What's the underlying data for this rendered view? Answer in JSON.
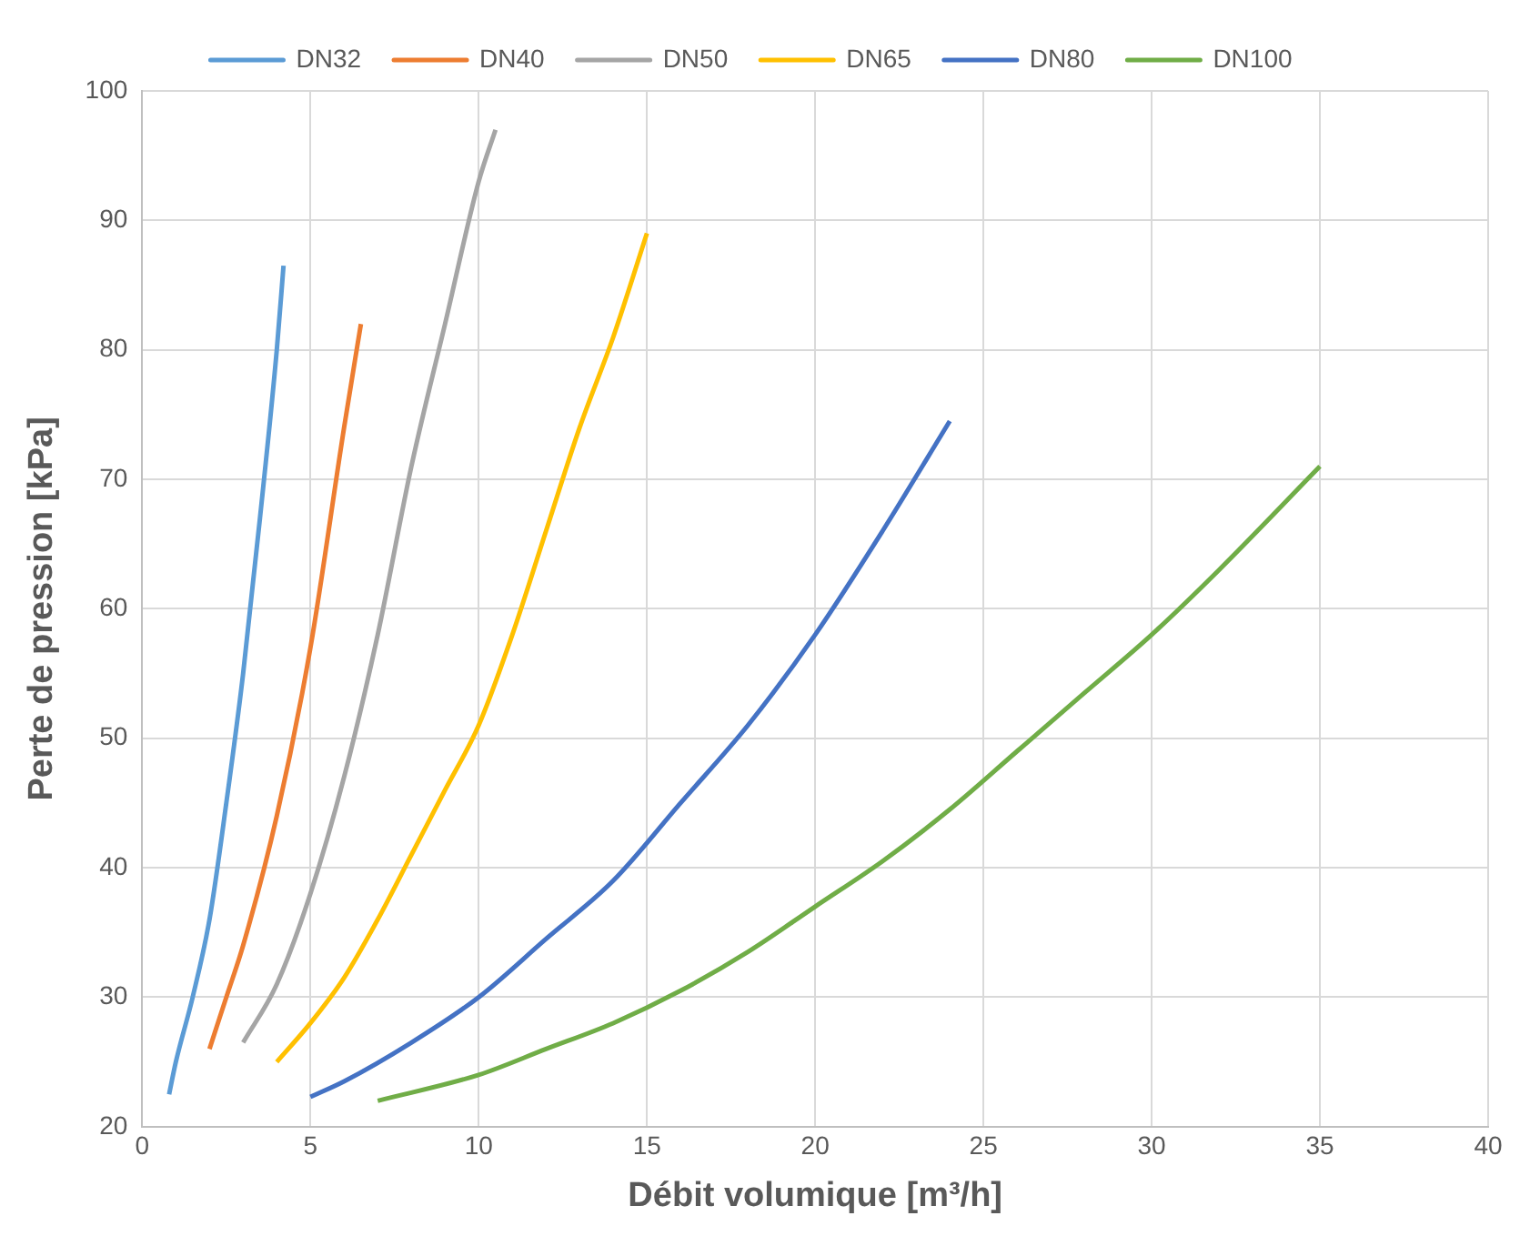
{
  "chart_data": {
    "type": "line",
    "xlabel": "Débit volumique [m³/h]",
    "ylabel": "Perte de pression [kPa]",
    "xlim": [
      0,
      40
    ],
    "xticks": [
      0,
      5,
      10,
      15,
      20,
      25,
      30,
      35,
      40
    ],
    "ylim": [
      20,
      100
    ],
    "yticks": [
      20,
      30,
      40,
      50,
      60,
      70,
      80,
      90,
      100
    ],
    "grid": true,
    "legend": "top",
    "marker": "none",
    "line_style": "solid",
    "series": [
      {
        "name": "DN32",
        "color": "#5b9bd5",
        "x": [
          0.8,
          1,
          1.5,
          2,
          2.5,
          3,
          3.5,
          4,
          4.2
        ],
        "values": [
          22.5,
          25,
          30,
          36,
          45,
          55,
          67,
          80,
          86.5
        ]
      },
      {
        "name": "DN40",
        "color": "#ed7d31",
        "x": [
          2,
          2.5,
          3,
          4,
          5,
          6,
          6.5
        ],
        "values": [
          26,
          30,
          34,
          44,
          57,
          74,
          82
        ]
      },
      {
        "name": "DN50",
        "color": "#a5a5a5",
        "x": [
          3,
          4,
          5,
          6,
          7,
          8,
          9,
          10,
          10.5
        ],
        "values": [
          26.5,
          31,
          38,
          47,
          58,
          71,
          82,
          93,
          97
        ]
      },
      {
        "name": "DN65",
        "color": "#ffc000",
        "x": [
          4,
          5,
          6,
          7,
          8,
          9,
          10,
          11,
          12,
          13,
          14,
          15
        ],
        "values": [
          25,
          28,
          31.5,
          36,
          41,
          46,
          51,
          58,
          66,
          74,
          81,
          89
        ]
      },
      {
        "name": "DN80",
        "color": "#4472c4",
        "x": [
          5,
          6,
          8,
          10,
          12,
          14,
          16,
          18,
          20,
          22,
          24
        ],
        "values": [
          22.3,
          23.5,
          26.5,
          30,
          34.5,
          39,
          45,
          51,
          58,
          66,
          74.5
        ]
      },
      {
        "name": "DN100",
        "color": "#70ad47",
        "x": [
          7,
          10,
          12,
          14,
          16,
          18,
          20,
          22,
          24,
          26,
          28,
          30,
          32,
          35
        ],
        "values": [
          22,
          24,
          26,
          28,
          30.5,
          33.5,
          37,
          40.5,
          44.5,
          49,
          53.5,
          58,
          63,
          71
        ]
      }
    ]
  }
}
